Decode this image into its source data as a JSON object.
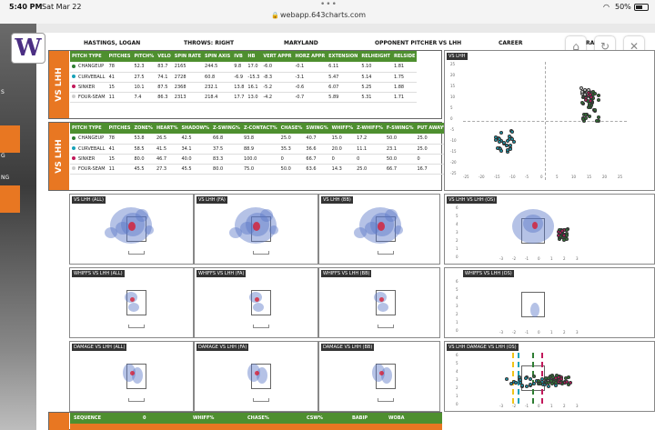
{
  "status": {
    "time": "5:40 PM",
    "date": "Sat Mar 22",
    "battery": "50%",
    "url": "webapp.643charts.com"
  },
  "sidebar_labels": [
    "S",
    "G",
    "NG"
  ],
  "logo": "W",
  "info": {
    "player": "HASTINGS, LOGAN",
    "throws": "THROWS: RIGHT",
    "team": "MARYLAND",
    "opp": "OPPONENT PITCHER VS LHH",
    "career": "CAREER",
    "ranges": "RANG"
  },
  "vs_label": "VS LHH",
  "table1": {
    "headers": [
      "PITCH TYPE",
      "PITCHES",
      "PITCH%",
      "VELO",
      "SPIN RATE",
      "SPIN AXIS",
      "IVB",
      "HB",
      "VERT APPR",
      "HORZ APPR",
      "EXTENSION",
      "RELHEIGHT",
      "RELSIDE"
    ],
    "rows": [
      {
        "color": "#2e7d32",
        "cells": [
          "CHANGEUP",
          "78",
          "52.3",
          "83.7",
          "2165",
          "244.5",
          "9.8",
          "17.0",
          "-6.0",
          "-0.1",
          "6.11",
          "5.10",
          "1.81"
        ]
      },
      {
        "color": "#17a2b8",
        "cells": [
          "CURVEBALL",
          "41",
          "27.5",
          "74.1",
          "2728",
          "60.8",
          "-6.9",
          "-15.3",
          "-8.3",
          "-3.1",
          "5.47",
          "5.14",
          "1.75"
        ]
      },
      {
        "color": "#c2185b",
        "cells": [
          "SINKER",
          "15",
          "10.1",
          "87.5",
          "2368",
          "232.1",
          "13.8",
          "16.1",
          "-5.2",
          "-0.6",
          "6.07",
          "5.25",
          "1.88"
        ]
      },
      {
        "color": "#cccccc",
        "cells": [
          "FOUR-SEAM",
          "11",
          "7.4",
          "86.3",
          "2313",
          "218.4",
          "17.7",
          "13.0",
          "-4.2",
          "-0.7",
          "5.89",
          "5.31",
          "1.71"
        ]
      }
    ]
  },
  "table2": {
    "headers": [
      "PITCH TYPE",
      "PITCHES",
      "ZONE%",
      "HEART%",
      "SHADOW%",
      "Z-SWING%",
      "Z-CONTACT%",
      "CHASE%",
      "SWING%",
      "WHIFF%",
      "Z-WHIFF%",
      "F-SWING%",
      "PUT AWAY%"
    ],
    "rows": [
      {
        "color": "#2e7d32",
        "cells": [
          "CHANGEUP",
          "78",
          "53.8",
          "26.5",
          "42.5",
          "66.8",
          "93.8",
          "25.0",
          "40.7",
          "15.0",
          "17.2",
          "50.0",
          "25.0"
        ]
      },
      {
        "color": "#17a2b8",
        "cells": [
          "CURVEBALL",
          "41",
          "58.5",
          "41.5",
          "34.1",
          "37.5",
          "88.9",
          "35.3",
          "36.6",
          "20.0",
          "11.1",
          "23.1",
          "25.0"
        ]
      },
      {
        "color": "#c2185b",
        "cells": [
          "SINKER",
          "15",
          "80.0",
          "46.7",
          "40.0",
          "83.3",
          "100.0",
          "0",
          "66.7",
          "0",
          "0",
          "50.0",
          "0"
        ]
      },
      {
        "color": "#cccccc",
        "cells": [
          "FOUR-SEAM",
          "11",
          "45.5",
          "27.3",
          "45.5",
          "80.0",
          "75.0",
          "50.0",
          "63.6",
          "14.3",
          "25.0",
          "66.7",
          "16.7"
        ]
      }
    ]
  },
  "heatmaps": {
    "row1": [
      "VS LHH (ALL)",
      "VS LHH (FA)",
      "VS LHH (BB)"
    ],
    "row2": [
      "WHIFFS VS LHH (ALL)",
      "WHIFFS VS LHH (FA)",
      "WHIFFS VS LHH (BB)"
    ],
    "row3": [
      "DAMAGE VS LHH (ALL)",
      "DAMAGE VS LHH (FA)",
      "DAMAGE VS LHH (BB)"
    ],
    "right": [
      "VS LHH",
      "VS LHH (OS)",
      "WHIFFS VS LHH (OS)",
      "VS LHH",
      "DAMAGE VS LHH (OS)"
    ]
  },
  "movement_axis": {
    "x": [
      "-25",
      "-20",
      "-15",
      "-10",
      "-5",
      "0",
      "5",
      "10",
      "15",
      "20",
      "25"
    ],
    "y": [
      "25",
      "20",
      "15",
      "10",
      "5",
      "0",
      "-5",
      "-10",
      "-15",
      "-20",
      "-25"
    ]
  },
  "location_axis": [
    "6",
    "5",
    "4",
    "3",
    "2",
    "1",
    "0"
  ],
  "location_x": [
    "-3",
    "-2",
    "-1",
    "0",
    "1",
    "2",
    "3"
  ],
  "sequence_headers": [
    "SEQUENCE",
    "0",
    "WHIFF%",
    "CHASE%",
    "CSW%",
    "BABIP",
    "WOBA"
  ],
  "icons": {
    "home": "home-icon",
    "refresh": "refresh-icon",
    "close": "close-icon"
  }
}
